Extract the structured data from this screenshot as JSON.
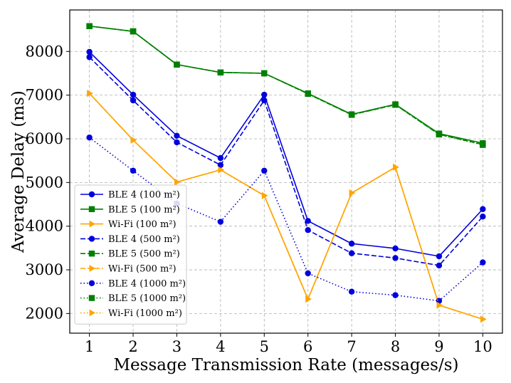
{
  "chart_data": {
    "type": "line",
    "title": "",
    "xlabel": "Message Transmission Rate (messages/s)",
    "ylabel": "Average Delay (ms)",
    "x": [
      1,
      2,
      3,
      4,
      5,
      6,
      7,
      8,
      9,
      10
    ],
    "xlim": [
      0.55,
      10.45
    ],
    "ylim": [
      1550,
      8950
    ],
    "xticks": [
      1,
      2,
      3,
      4,
      5,
      6,
      7,
      8,
      9,
      10
    ],
    "yticks": [
      2000,
      3000,
      4000,
      5000,
      6000,
      7000,
      8000
    ],
    "grid": true,
    "legend_position": "lower-left",
    "series": [
      {
        "name": "BLE 4 (100 m²)",
        "color": "#0000dd",
        "linestyle": "solid",
        "marker": "circle",
        "values": [
          7990,
          7010,
          6070,
          5560,
          7010,
          4120,
          3600,
          3490,
          3310,
          4390
        ]
      },
      {
        "name": "BLE 5 (100 m²)",
        "color": "#008000",
        "linestyle": "solid",
        "marker": "square",
        "values": [
          8580,
          8460,
          7700,
          7520,
          7500,
          7040,
          6560,
          6790,
          6120,
          5900
        ]
      },
      {
        "name": "Wi-Fi (100 m²)",
        "color": "#ffa500",
        "linestyle": "solid",
        "marker": "triangle-right",
        "values": [
          7040,
          5970,
          5010,
          5290,
          4700,
          2330,
          4760,
          5350,
          2190,
          1870
        ]
      },
      {
        "name": "BLE 4 (500 m²)",
        "color": "#0000dd",
        "linestyle": "dashed",
        "marker": "circle",
        "values": [
          7870,
          6880,
          5920,
          5400,
          6880,
          3910,
          3380,
          3270,
          3100,
          4220
        ]
      },
      {
        "name": "BLE 5 (500 m²)",
        "color": "#008000",
        "linestyle": "dashed",
        "marker": "square",
        "values": [
          8580,
          8460,
          7700,
          7520,
          7500,
          7030,
          6550,
          6780,
          6100,
          5870
        ]
      },
      {
        "name": "Wi-Fi (500 m²)",
        "color": "#ffa500",
        "linestyle": "dashed",
        "marker": "triangle-right",
        "values": [
          7040,
          5970,
          5010,
          5290,
          4700,
          2330,
          4760,
          5350,
          2190,
          1870
        ]
      },
      {
        "name": "BLE 4 (1000 m²)",
        "color": "#0000dd",
        "linestyle": "dotted",
        "marker": "circle",
        "values": [
          6030,
          5270,
          4520,
          4100,
          5270,
          2920,
          2500,
          2420,
          2290,
          3170
        ]
      },
      {
        "name": "BLE 5 (1000 m²)",
        "color": "#008000",
        "linestyle": "dotted",
        "marker": "square",
        "values": [
          8580,
          8460,
          7700,
          7520,
          7500,
          7030,
          6550,
          6780,
          6100,
          5860
        ]
      },
      {
        "name": "Wi-Fi (1000 m²)",
        "color": "#ffa500",
        "linestyle": "dotted",
        "marker": "triangle-right",
        "values": [
          7040,
          5970,
          5010,
          5290,
          4700,
          2330,
          4760,
          5350,
          2190,
          1870
        ]
      }
    ]
  }
}
